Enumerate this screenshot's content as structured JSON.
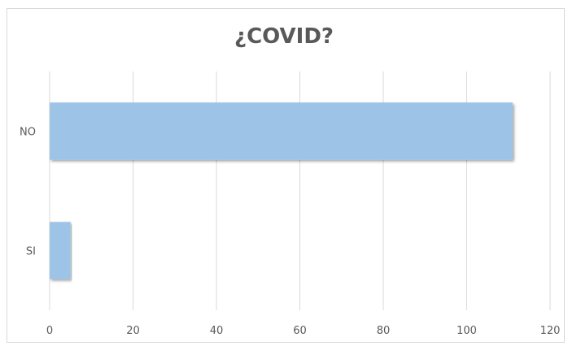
{
  "chart_data": {
    "type": "bar",
    "orientation": "horizontal",
    "title": "¿COVID?",
    "categories": [
      "NO",
      "SI"
    ],
    "values": [
      111,
      5
    ],
    "xlabel": "",
    "ylabel": "",
    "xlim": [
      0,
      120
    ],
    "x_ticks": [
      0,
      20,
      40,
      60,
      80,
      100,
      120
    ],
    "grid": true,
    "legend": "none",
    "bar_color": "#9dc3e6",
    "grid_color": "#d9d9d9"
  }
}
